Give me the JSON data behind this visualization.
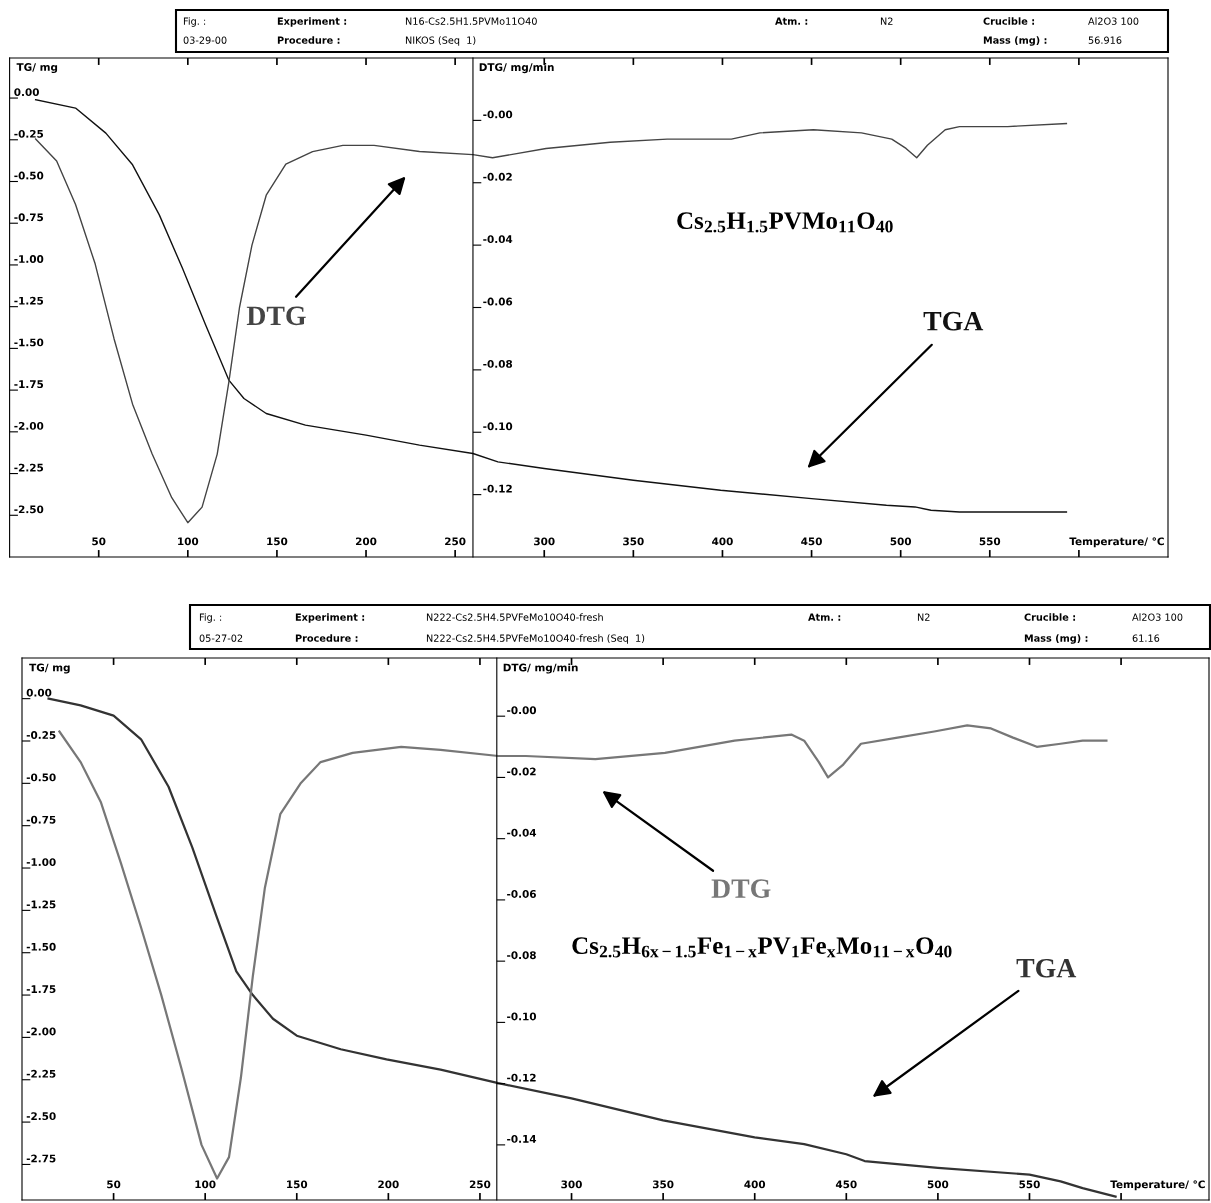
{
  "chart_data": [
    {
      "type": "line",
      "xlabel": "Temperature/ °C",
      "ylabel": "TG/ mg",
      "y2label": "DTG/ mg/min",
      "xlim": [
        0,
        650
      ],
      "ylim": [
        -2.75,
        0.24
      ],
      "y2lim": [
        -0.14,
        0.02
      ],
      "xticks": [
        50,
        100,
        150,
        200,
        250,
        300,
        350,
        400,
        450,
        500,
        550,
        {
          "value": 600,
          "label": null
        }
      ],
      "yticks": [
        {
          "value": 0,
          "label": "0.00"
        },
        {
          "value": -0.25,
          "label": "-0.25"
        },
        {
          "value": -0.5,
          "label": "-0.50"
        },
        {
          "value": -0.75,
          "label": "-0.75"
        },
        {
          "value": -1.0,
          "label": "-1.00"
        },
        {
          "value": -1.25,
          "label": "-1.25"
        },
        {
          "value": -1.5,
          "label": "-1.50"
        },
        {
          "value": -1.75,
          "label": "-1.75"
        },
        {
          "value": -2.0,
          "label": "-2.00"
        },
        {
          "value": -2.25,
          "label": "-2.25"
        },
        {
          "value": -2.5,
          "label": "-2.50"
        }
      ],
      "y2ticks": [
        {
          "value": 0,
          "label": "-0.00"
        },
        {
          "value": -0.02,
          "label": "-0.02"
        },
        {
          "value": -0.04,
          "label": "-0.04"
        },
        {
          "value": -0.06,
          "label": "-0.06"
        },
        {
          "value": -0.08,
          "label": "-0.08"
        },
        {
          "value": -0.1,
          "label": "-0.10"
        },
        {
          "value": -0.12,
          "label": "-0.12"
        }
      ],
      "series": [
        {
          "name": "TGA",
          "color": "#111111",
          "x": [
            14.6,
            37,
            54,
            69,
            84,
            97,
            110,
            123,
            131.5,
            144,
            166,
            200,
            230,
            260,
            274,
            300,
            350,
            399,
            450,
            492,
            508,
            517,
            533,
            593
          ],
          "values": [
            -0.01,
            -0.06,
            -0.21,
            -0.4,
            -0.7,
            -1.02,
            -1.36,
            -1.69,
            -1.8,
            -1.89,
            -1.96,
            -2.02,
            -2.08,
            -2.13,
            -2.18,
            -2.22,
            -2.29,
            -2.35,
            -2.4,
            -2.44,
            -2.45,
            -2.47,
            -2.48,
            -2.48
          ]
        },
        {
          "name": "DTG",
          "color": "#444444",
          "axis": "y2",
          "x": [
            14.6,
            26.4,
            37,
            48,
            58.6,
            69,
            80,
            91,
            100,
            108,
            116.5,
            123,
            129,
            136,
            144,
            155,
            170,
            187,
            204.5,
            230,
            260,
            271,
            301,
            337,
            369,
            405,
            421,
            451,
            478,
            495,
            503,
            509,
            515,
            525,
            533,
            560,
            593
          ],
          "values": [
            -0.006,
            -0.013,
            -0.027,
            -0.046,
            -0.07,
            -0.091,
            -0.107,
            -0.121,
            -0.129,
            -0.124,
            -0.107,
            -0.084,
            -0.06,
            -0.04,
            -0.024,
            -0.014,
            -0.01,
            -0.008,
            -0.008,
            -0.01,
            -0.011,
            -0.012,
            -0.009,
            -0.007,
            -0.006,
            -0.006,
            -0.004,
            -0.003,
            -0.004,
            -0.006,
            -0.009,
            -0.012,
            -0.008,
            -0.003,
            -0.002,
            -0.002,
            -0.001
          ]
        }
      ],
      "annotations": [
        "Fig. :",
        "03-29-00",
        "Experiment :",
        "N16-Cs2.5H1.5PVMo11O40",
        "Procedure :",
        "NIKOS (Seq  1)",
        "Atm. :",
        "N2",
        "Crucible :",
        "Al2O3 100",
        "Mass (mg) :",
        "56.916",
        "Cs$_{2.5}$H$_{1.5}$PVMo$_{11}$O$_{40}$"
      ]
    },
    {
      "type": "line",
      "xlabel": "Temperature/ °C",
      "ylabel": "TG/ mg",
      "y2label": "DTG/ mg/min",
      "xlim": [
        0,
        648
      ],
      "ylim": [
        -2.96,
        0.24
      ],
      "y2lim": [
        -0.158,
        0.019
      ],
      "xticks": [
        50,
        100,
        150,
        200,
        250,
        300,
        350,
        400,
        450,
        500,
        550,
        {
          "value": 600,
          "label": null
        }
      ],
      "yticks": [
        {
          "value": 0,
          "label": "0.00"
        },
        {
          "value": -0.25,
          "label": "-0.25"
        },
        {
          "value": -0.5,
          "label": "-0.50"
        },
        {
          "value": -0.75,
          "label": "-0.75"
        },
        {
          "value": -1.0,
          "label": "-1.00"
        },
        {
          "value": -1.25,
          "label": "-1.25"
        },
        {
          "value": -1.5,
          "label": "-1.50"
        },
        {
          "value": -1.75,
          "label": "-1.75"
        },
        {
          "value": -2.0,
          "label": "-2.00"
        },
        {
          "value": -2.25,
          "label": "-2.25"
        },
        {
          "value": -2.5,
          "label": "-2.50"
        },
        {
          "value": -2.75,
          "label": "-2.75"
        }
      ],
      "y2ticks": [
        {
          "value": 0,
          "label": "-0.00"
        },
        {
          "value": -0.02,
          "label": "-0.02"
        },
        {
          "value": -0.04,
          "label": "-0.04"
        },
        {
          "value": -0.06,
          "label": "-0.06"
        },
        {
          "value": -0.08,
          "label": "-0.08"
        },
        {
          "value": -0.1,
          "label": "-0.10"
        },
        {
          "value": -0.12,
          "label": "-0.12"
        },
        {
          "value": -0.14,
          "label": "-0.14"
        }
      ],
      "series": [
        {
          "name": "TGA",
          "color": "#333333",
          "x": [
            14.5,
            32,
            50,
            65,
            80,
            93,
            106,
            117,
            126,
            137,
            150,
            174,
            199,
            228.5,
            260,
            300,
            350,
            400,
            427,
            450,
            460,
            500,
            550,
            567,
            579,
            597
          ],
          "values": [
            0.0,
            -0.04,
            -0.1,
            -0.24,
            -0.52,
            -0.88,
            -1.28,
            -1.61,
            -1.75,
            -1.89,
            -1.99,
            -2.07,
            -2.13,
            -2.19,
            -2.27,
            -2.36,
            -2.49,
            -2.59,
            -2.63,
            -2.69,
            -2.73,
            -2.77,
            -2.81,
            -2.85,
            -2.89,
            -2.94
          ]
        },
        {
          "name": "DTG",
          "color": "#777777",
          "axis": "y2",
          "x": [
            20.4,
            32,
            43,
            54,
            65,
            76,
            87,
            98,
            106.5,
            113,
            119.5,
            126,
            132.6,
            141,
            152,
            163,
            180.5,
            207,
            228.5,
            260,
            275,
            313,
            351,
            389,
            420,
            427,
            435,
            440,
            448,
            458,
            478,
            498,
            516,
            529,
            541,
            554,
            567,
            579,
            592
          ],
          "values": [
            -0.005,
            -0.015,
            -0.028,
            -0.048,
            -0.069,
            -0.091,
            -0.115,
            -0.14,
            -0.151,
            -0.144,
            -0.118,
            -0.085,
            -0.056,
            -0.032,
            -0.022,
            -0.015,
            -0.012,
            -0.01,
            -0.011,
            -0.013,
            -0.013,
            -0.014,
            -0.012,
            -0.008,
            -0.006,
            -0.008,
            -0.015,
            -0.02,
            -0.016,
            -0.009,
            -0.007,
            -0.005,
            -0.003,
            -0.004,
            -0.007,
            -0.01,
            -0.009,
            -0.008,
            -0.008
          ]
        }
      ],
      "annotations": [
        "Fig. :",
        "05-27-02",
        "Experiment :",
        "N222-Cs2.5H4.5PVFeMo10O40-fresh",
        "Procedure :",
        "N222-Cs2.5H4.5PVFeMo10O40-fresh (Seq  1)",
        "Atm. :",
        "N2",
        "Crucible :",
        "Al2O3 100",
        "Mass (mg) :",
        "61.16",
        "Cs$_{2.5}$H$_{6x−1.5}$Fe$_{1−x}$PV$_{1}$Fe$_{x}$Mo$_{11−x}$O$_{40}$"
      ]
    }
  ]
}
